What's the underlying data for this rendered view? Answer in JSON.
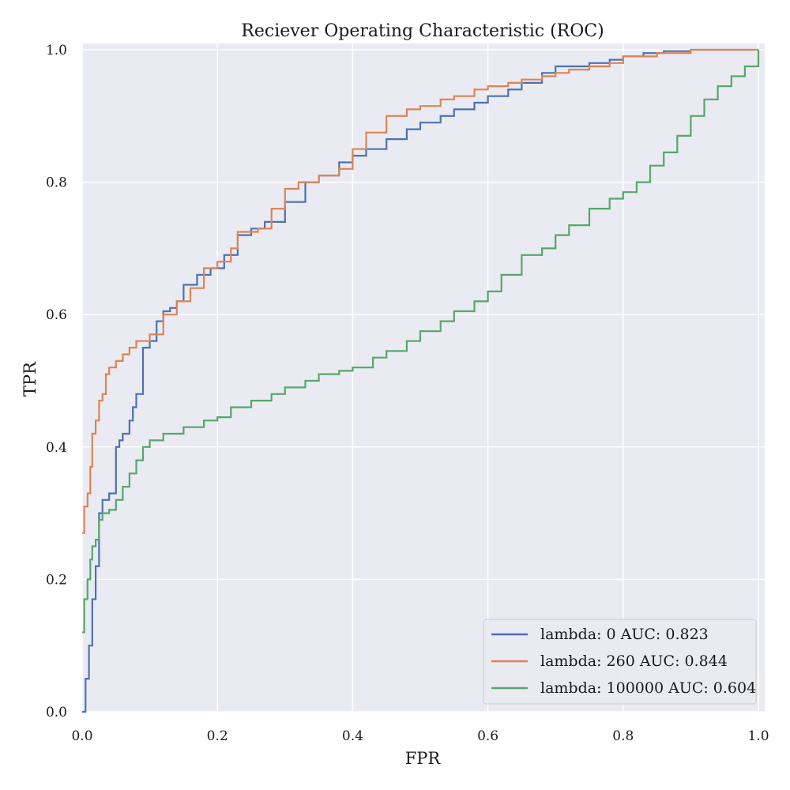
{
  "chart_data": {
    "type": "line",
    "title": "Reciever Operating Characteristic (ROC)",
    "xlabel": "FPR",
    "ylabel": "TPR",
    "xlim": [
      0.0,
      1.0
    ],
    "ylim": [
      0.0,
      1.0
    ],
    "xticks": [
      "0.0",
      "0.2",
      "0.4",
      "0.6",
      "0.8",
      "1.0"
    ],
    "yticks": [
      "0.0",
      "0.2",
      "0.4",
      "0.6",
      "0.8",
      "1.0"
    ],
    "grid": true,
    "legend_position": "bottom-right",
    "series": [
      {
        "name": "lambda: 0 AUC: 0.823",
        "color": "#4c72b0",
        "x": [
          0.0,
          0.005,
          0.01,
          0.015,
          0.02,
          0.025,
          0.03,
          0.04,
          0.05,
          0.055,
          0.06,
          0.07,
          0.075,
          0.08,
          0.09,
          0.1,
          0.11,
          0.12,
          0.13,
          0.14,
          0.15,
          0.17,
          0.19,
          0.21,
          0.23,
          0.25,
          0.27,
          0.3,
          0.33,
          0.35,
          0.38,
          0.4,
          0.42,
          0.45,
          0.48,
          0.5,
          0.53,
          0.55,
          0.58,
          0.6,
          0.63,
          0.65,
          0.68,
          0.7,
          0.72,
          0.75,
          0.78,
          0.8,
          0.83,
          0.86,
          0.9
        ],
        "y": [
          0.0,
          0.05,
          0.1,
          0.17,
          0.22,
          0.3,
          0.32,
          0.33,
          0.4,
          0.41,
          0.42,
          0.44,
          0.46,
          0.48,
          0.55,
          0.56,
          0.59,
          0.605,
          0.61,
          0.62,
          0.645,
          0.66,
          0.67,
          0.69,
          0.72,
          0.73,
          0.74,
          0.77,
          0.8,
          0.81,
          0.83,
          0.84,
          0.85,
          0.865,
          0.88,
          0.89,
          0.9,
          0.91,
          0.92,
          0.93,
          0.94,
          0.95,
          0.965,
          0.975,
          0.975,
          0.98,
          0.985,
          0.99,
          0.995,
          0.998,
          0.998
        ]
      },
      {
        "name": "lambda: 260 AUC: 0.844",
        "color": "#dd8452",
        "x": [
          0.0,
          0.003,
          0.008,
          0.012,
          0.015,
          0.02,
          0.025,
          0.03,
          0.035,
          0.04,
          0.05,
          0.06,
          0.07,
          0.08,
          0.1,
          0.12,
          0.14,
          0.16,
          0.18,
          0.2,
          0.22,
          0.23,
          0.26,
          0.28,
          0.3,
          0.32,
          0.35,
          0.38,
          0.4,
          0.42,
          0.45,
          0.48,
          0.5,
          0.53,
          0.55,
          0.58,
          0.6,
          0.63,
          0.65,
          0.68,
          0.7,
          0.72,
          0.75,
          0.78,
          0.8,
          0.85,
          0.9,
          0.95,
          1.0
        ],
        "y": [
          0.27,
          0.31,
          0.33,
          0.37,
          0.42,
          0.44,
          0.47,
          0.48,
          0.51,
          0.52,
          0.53,
          0.54,
          0.55,
          0.56,
          0.57,
          0.6,
          0.62,
          0.64,
          0.67,
          0.68,
          0.7,
          0.725,
          0.73,
          0.76,
          0.79,
          0.8,
          0.81,
          0.82,
          0.85,
          0.875,
          0.9,
          0.91,
          0.915,
          0.925,
          0.93,
          0.94,
          0.945,
          0.95,
          0.955,
          0.96,
          0.965,
          0.97,
          0.975,
          0.98,
          0.99,
          0.995,
          1.0,
          1.0,
          1.0
        ]
      },
      {
        "name": "lambda: 100000 AUC: 0.604",
        "color": "#55a868",
        "x": [
          0.0,
          0.003,
          0.008,
          0.012,
          0.015,
          0.02,
          0.025,
          0.03,
          0.04,
          0.05,
          0.06,
          0.07,
          0.08,
          0.09,
          0.1,
          0.12,
          0.15,
          0.18,
          0.2,
          0.22,
          0.25,
          0.28,
          0.3,
          0.33,
          0.35,
          0.38,
          0.4,
          0.43,
          0.45,
          0.48,
          0.5,
          0.53,
          0.55,
          0.58,
          0.6,
          0.62,
          0.65,
          0.68,
          0.7,
          0.72,
          0.75,
          0.78,
          0.8,
          0.82,
          0.84,
          0.86,
          0.88,
          0.9,
          0.92,
          0.94,
          0.96,
          0.98,
          1.0
        ],
        "y": [
          0.12,
          0.17,
          0.2,
          0.23,
          0.25,
          0.26,
          0.29,
          0.3,
          0.305,
          0.32,
          0.34,
          0.36,
          0.38,
          0.4,
          0.41,
          0.42,
          0.43,
          0.44,
          0.445,
          0.46,
          0.47,
          0.48,
          0.49,
          0.5,
          0.51,
          0.515,
          0.52,
          0.535,
          0.545,
          0.56,
          0.575,
          0.59,
          0.605,
          0.62,
          0.635,
          0.66,
          0.69,
          0.7,
          0.72,
          0.735,
          0.76,
          0.775,
          0.785,
          0.8,
          0.825,
          0.845,
          0.87,
          0.9,
          0.925,
          0.945,
          0.96,
          0.975,
          1.0
        ]
      }
    ]
  }
}
